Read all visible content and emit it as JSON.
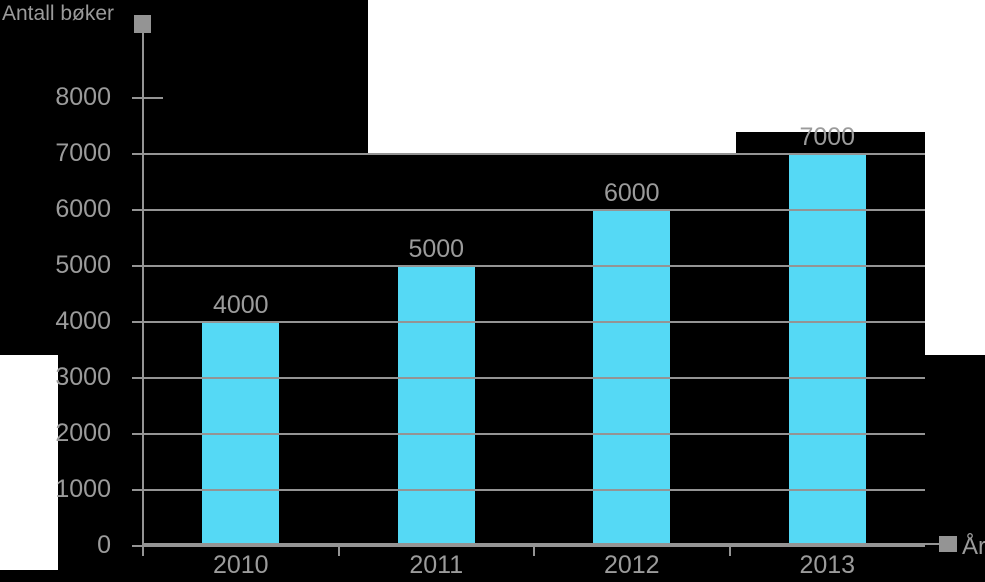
{
  "title": "Antall bøker",
  "x_axis_title": "År",
  "colors": {
    "background": "#000000",
    "panel": "#ffffff",
    "bar": "#55d9f5",
    "line": "#949494",
    "text": "#9b9b9b"
  },
  "chart_data": {
    "type": "bar",
    "title": "Antall bøker",
    "xlabel": "År",
    "ylabel": "Antall bøker",
    "categories": [
      "2010",
      "2011",
      "2012",
      "2013"
    ],
    "values": [
      4000,
      5000,
      6000,
      7000
    ],
    "data_labels": [
      "4000",
      "5000",
      "6000",
      "7000"
    ],
    "yticks": [
      0,
      1000,
      2000,
      3000,
      4000,
      5000,
      6000,
      7000,
      8000
    ],
    "ytick_labels": [
      "0",
      "1000",
      "2000",
      "3000",
      "4000",
      "5000",
      "6000",
      "7000",
      "8000"
    ],
    "ylim": [
      0,
      8000
    ],
    "grid": true,
    "legend": false,
    "bar_color": "#55d9f5",
    "axis_color": "#949494",
    "annotations": "value labels above each bar; gray square caps at the end of each axis"
  }
}
